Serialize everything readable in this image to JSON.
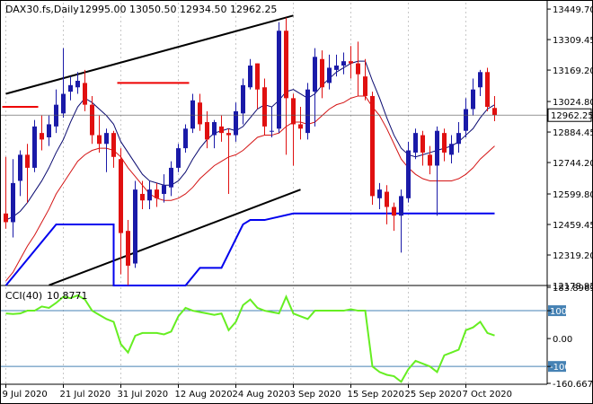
{
  "header": {
    "symbol": "DAX30.fs,Daily",
    "ohlc": "12995.00 13050.50 12934.50 12962.25"
  },
  "colors": {
    "up": "#1a1aa8",
    "down": "#e01010",
    "ma_fast": "#0a0a70",
    "ma_slow": "#d41414",
    "step": "#0000ee",
    "red_level": "#ee0000",
    "trend": "#000000",
    "cci": "#66ee22",
    "level": "#4682b4",
    "grid": "#c8c8c8",
    "current_box": "#ffffff"
  },
  "chart_data": [
    {
      "type": "candlestick",
      "title": "DAX30.fs,Daily",
      "ylim": [
        12178.95,
        13479.0
      ],
      "y_ticks": [
        13449.7,
        13309.45,
        13169.2,
        13024.8,
        12884.45,
        12744.2,
        12599.8,
        12459.45,
        12319.2,
        12178.95
      ],
      "y_tick_labels": [
        "13449.70",
        "13309.45",
        "13169.20",
        "13024.80",
        "12884.45",
        "12744.20",
        "12599.80",
        "12459.45",
        "12319.20",
        "12178.95"
      ],
      "current_price": 12962.25,
      "current_price_label": "12962.25",
      "x_labels": [
        "9 Jul 2020",
        "21 Jul 2020",
        "31 Jul 2020",
        "12 Aug 2020",
        "24 Aug 2020",
        "3 Sep 2020",
        "15 Sep 2020",
        "25 Sep 2020",
        "7 Oct 2020"
      ],
      "x_label_index": [
        0,
        8,
        16,
        24,
        32,
        40,
        48,
        56,
        64
      ],
      "candles": [
        [
          12510,
          12470,
          12770,
          12440
        ],
        [
          12470,
          12650,
          12760,
          12400
        ],
        [
          12660,
          12780,
          12800,
          12590
        ],
        [
          12780,
          12720,
          12830,
          12560
        ],
        [
          12720,
          12910,
          12940,
          12700
        ],
        [
          12880,
          12850,
          12960,
          12800
        ],
        [
          12860,
          12920,
          12960,
          12820
        ],
        [
          12910,
          13010,
          13080,
          12880
        ],
        [
          12970,
          13060,
          13270,
          12950
        ],
        [
          13070,
          13100,
          13140,
          13030
        ],
        [
          13090,
          13120,
          13160,
          13060
        ],
        [
          13110,
          13010,
          13170,
          12980
        ],
        [
          13010,
          12870,
          13050,
          12830
        ],
        [
          12870,
          12830,
          12960,
          12790
        ],
        [
          12830,
          12880,
          12900,
          12700
        ],
        [
          12880,
          12770,
          12890,
          12720
        ],
        [
          12760,
          12420,
          12810,
          12230
        ],
        [
          12430,
          12270,
          12480,
          12180
        ],
        [
          12280,
          12620,
          12660,
          12260
        ],
        [
          12600,
          12570,
          12660,
          12530
        ],
        [
          12570,
          12620,
          12660,
          12530
        ],
        [
          12620,
          12580,
          12650,
          12540
        ],
        [
          12600,
          12640,
          12690,
          12560
        ],
        [
          12630,
          12720,
          12750,
          12590
        ],
        [
          12720,
          12810,
          12830,
          12700
        ],
        [
          12810,
          12900,
          12920,
          12790
        ],
        [
          12900,
          13030,
          13060,
          12880
        ],
        [
          13020,
          12920,
          13060,
          12890
        ],
        [
          12930,
          12850,
          12980,
          12810
        ],
        [
          12870,
          12930,
          12940,
          12810
        ],
        [
          12910,
          12880,
          12960,
          12840
        ],
        [
          12880,
          12870,
          12900,
          12600
        ],
        [
          12870,
          12980,
          13020,
          12840
        ],
        [
          12970,
          13100,
          13130,
          12920
        ],
        [
          13090,
          13190,
          13220,
          13080
        ],
        [
          13200,
          13080,
          13200,
          12990
        ],
        [
          13090,
          12910,
          13130,
          12870
        ],
        [
          12890,
          12890,
          13000,
          12860
        ],
        [
          12900,
          13350,
          13390,
          12880
        ],
        [
          13350,
          13040,
          13410,
          12780
        ],
        [
          13040,
          12920,
          13060,
          12730
        ],
        [
          12920,
          12900,
          13000,
          12850
        ],
        [
          12880,
          13080,
          13110,
          12850
        ],
        [
          13070,
          13230,
          13270,
          12910
        ],
        [
          13220,
          13090,
          13260,
          13040
        ],
        [
          13110,
          13180,
          13240,
          13080
        ],
        [
          13170,
          13190,
          13240,
          13140
        ],
        [
          13190,
          13210,
          13250,
          13150
        ],
        [
          13210,
          13200,
          13280,
          13130
        ],
        [
          13200,
          13150,
          13300,
          13050
        ],
        [
          13140,
          13050,
          13220,
          13030
        ],
        [
          13050,
          12590,
          13070,
          12550
        ],
        [
          12580,
          12620,
          12650,
          12530
        ],
        [
          12610,
          12540,
          12640,
          12460
        ],
        [
          12540,
          12500,
          12560,
          12430
        ],
        [
          12500,
          12590,
          12620,
          12330
        ],
        [
          12580,
          12800,
          12840,
          12560
        ],
        [
          12790,
          12880,
          12900,
          12760
        ],
        [
          12870,
          12790,
          12890,
          12730
        ],
        [
          12780,
          12730,
          12820,
          12690
        ],
        [
          12730,
          12890,
          12910,
          12500
        ],
        [
          12880,
          12790,
          12900,
          12750
        ],
        [
          12780,
          12830,
          12870,
          12740
        ],
        [
          12830,
          12880,
          12930,
          12790
        ],
        [
          12890,
          12990,
          13040,
          12860
        ],
        [
          12990,
          13080,
          13130,
          12960
        ],
        [
          13090,
          13160,
          13170,
          13050
        ],
        [
          13160,
          13000,
          13180,
          12980
        ],
        [
          12995,
          12962,
          13050,
          12934
        ]
      ],
      "ma_fast": [
        12480,
        12495,
        12520,
        12560,
        12610,
        12660,
        12720,
        12790,
        12850,
        12930,
        13000,
        13040,
        13020,
        12990,
        12960,
        12920,
        12840,
        12790,
        12740,
        12690,
        12660,
        12650,
        12640,
        12640,
        12660,
        12700,
        12760,
        12810,
        12850,
        12880,
        12890,
        12900,
        12890,
        12910,
        12950,
        12990,
        13010,
        13000,
        13030,
        13070,
        13080,
        13060,
        13040,
        13060,
        13100,
        13130,
        13160,
        13180,
        13200,
        13210,
        13210,
        13120,
        13040,
        12950,
        12870,
        12810,
        12780,
        12770,
        12780,
        12790,
        12800,
        12810,
        12820,
        12840,
        12870,
        12900,
        12950,
        12990,
        13010
      ],
      "ma_slow": [
        12200,
        12240,
        12300,
        12360,
        12410,
        12470,
        12530,
        12600,
        12650,
        12700,
        12750,
        12780,
        12800,
        12810,
        12810,
        12800,
        12770,
        12720,
        12680,
        12640,
        12600,
        12580,
        12570,
        12570,
        12580,
        12600,
        12630,
        12670,
        12700,
        12730,
        12750,
        12770,
        12780,
        12800,
        12830,
        12860,
        12870,
        12870,
        12880,
        12910,
        12930,
        12930,
        12920,
        12930,
        12960,
        12990,
        13010,
        13020,
        13040,
        13050,
        13050,
        13000,
        12960,
        12900,
        12830,
        12760,
        12720,
        12690,
        12670,
        12660,
        12660,
        12660,
        12660,
        12670,
        12690,
        12720,
        12760,
        12790,
        12820
      ],
      "step_level": [
        [
          0,
          12178.95
        ],
        [
          7,
          12459.45
        ],
        [
          15,
          12459.45
        ],
        [
          15,
          12178.95
        ],
        [
          25,
          12178.95
        ],
        [
          27,
          12260
        ],
        [
          30,
          12260
        ],
        [
          33,
          12460
        ],
        [
          34,
          12480
        ],
        [
          36,
          12480
        ],
        [
          40,
          12510
        ],
        [
          47,
          12510
        ],
        [
          55,
          12510
        ],
        [
          68,
          12510
        ]
      ],
      "red_levels": [
        {
          "from": 0,
          "to": 4,
          "value": 13000
        },
        {
          "from": 16,
          "to": 25,
          "value": 13110
        }
      ],
      "trendlines": [
        {
          "from": [
            0,
            13060
          ],
          "to": [
            40,
            13420
          ]
        },
        {
          "from": [
            6,
            12180
          ],
          "to": [
            41,
            12620
          ]
        }
      ]
    },
    {
      "type": "line",
      "title": "CCI(40) 10.8771",
      "label": "CCI(40)",
      "value_label": "10.8771",
      "ylim": [
        -160.6677,
        183.8969
      ],
      "y_ticks": [
        183.8969,
        100,
        0.0,
        -100,
        -160.6677
      ],
      "y_tick_labels": [
        "183.8969",
        "100",
        "0.00",
        "-100",
        "-160.6677"
      ],
      "levels": [
        100,
        -100
      ],
      "values": [
        90,
        88,
        90,
        100,
        100,
        115,
        110,
        128,
        150,
        145,
        155,
        140,
        100,
        85,
        70,
        60,
        -20,
        -50,
        10,
        20,
        20,
        20,
        15,
        25,
        80,
        110,
        100,
        95,
        90,
        85,
        90,
        30,
        60,
        120,
        140,
        110,
        100,
        95,
        90,
        150,
        90,
        80,
        70,
        100,
        100,
        100,
        100,
        100,
        105,
        100,
        100,
        -100,
        -120,
        -130,
        -135,
        -155,
        -110,
        -80,
        -90,
        -100,
        -120,
        -60,
        -50,
        -40,
        30,
        40,
        60,
        20,
        11
      ]
    }
  ]
}
